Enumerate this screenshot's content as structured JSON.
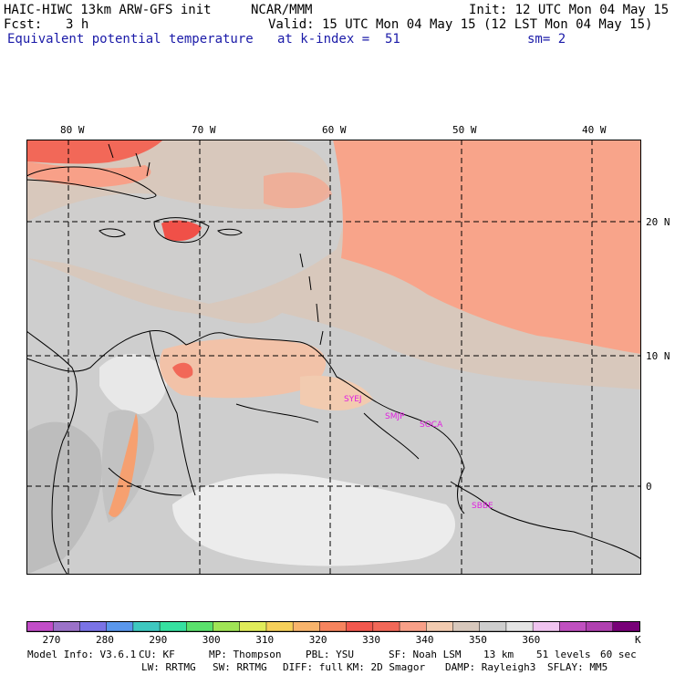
{
  "header": {
    "model_title": "HAIC-HIWC 13km ARW-GFS init",
    "org": "NCAR/MMM",
    "init": "Init: 12 UTC Mon 04 May 15",
    "fcst_label": "Fcst:",
    "fcst_value": "3 h",
    "valid": "Valid: 15 UTC Mon 04 May 15 (12 LST Mon 04 May 15)",
    "field_name": "Equivalent potential temperature",
    "level": "at k-index =  51",
    "smoothing": "sm= 2"
  },
  "map": {
    "lon_labels": [
      "80 W",
      "70 W",
      "60 W",
      "50 W",
      "40 W"
    ],
    "lat_labels": [
      "20 N",
      "10 N",
      "0"
    ],
    "stations": [
      "SYEJ",
      "SMJP",
      "SOCA",
      "SBBE"
    ],
    "station_color": "#e020e0"
  },
  "colorbar": {
    "colors": [
      "#c24dc8",
      "#9b72c8",
      "#7a73e6",
      "#5a97ec",
      "#3ec8c0",
      "#36e0a0",
      "#5ae06c",
      "#a0e456",
      "#e0ec5a",
      "#f6d05a",
      "#f8b46c",
      "#f6845e",
      "#f2584e",
      "#f26858",
      "#f8a088",
      "#f2cbb0",
      "#d8c8bc",
      "#cecece",
      "#e4e4e4",
      "#f0c4f0",
      "#c050c0",
      "#b040b0",
      "#780078"
    ],
    "tick_labels": [
      "270",
      "280",
      "290",
      "300",
      "310",
      "320",
      "330",
      "340",
      "350",
      "360"
    ],
    "unit": "K"
  },
  "footer": {
    "line1": [
      "Model Info: V3.6.1",
      "CU: KF",
      "MP: Thompson",
      "PBL: YSU",
      "SF: Noah LSM",
      "13 km",
      "51 levels",
      "60 sec"
    ],
    "line2": [
      "LW: RRTMG",
      "SW: RRTMG",
      "DIFF: full",
      "KM: 2D Smagor",
      "DAMP: Rayleigh3",
      "SFLAY: MM5"
    ]
  }
}
